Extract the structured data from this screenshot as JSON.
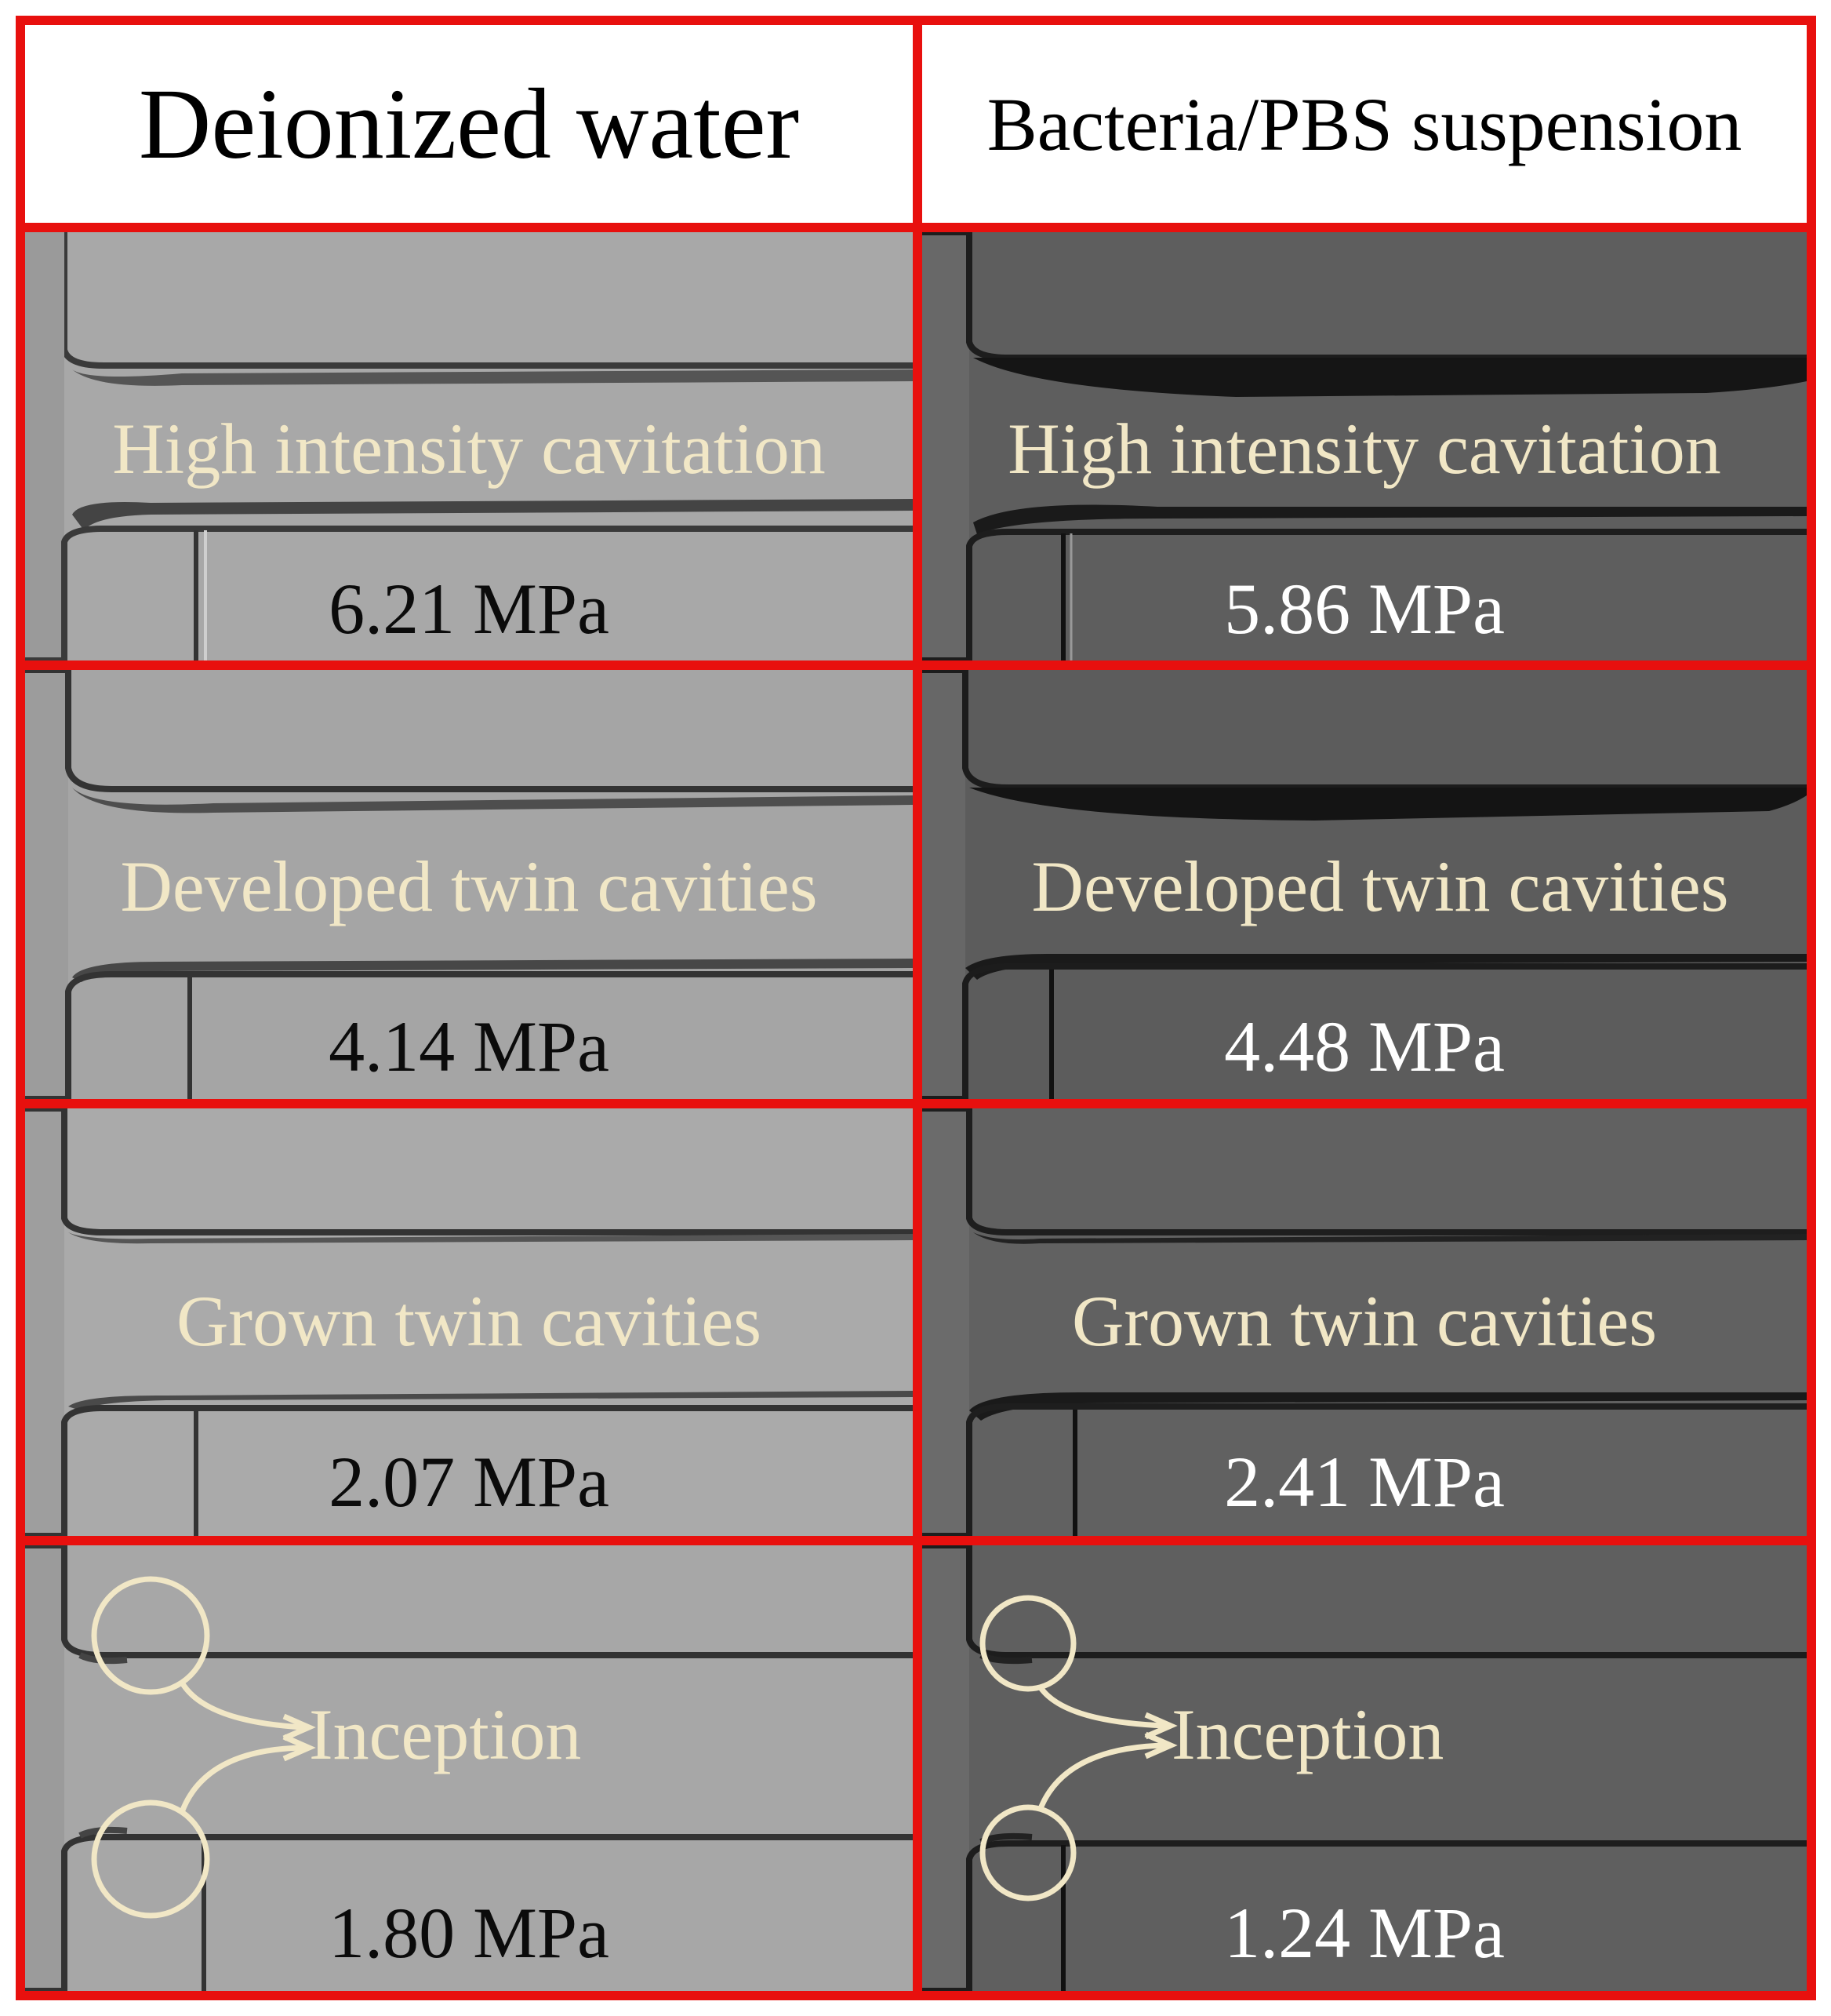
{
  "columns": [
    {
      "title": "Deionized water",
      "panels": [
        {
          "stage": "High intensity cavitation",
          "pressure": "6.21 MPa"
        },
        {
          "stage": "Developed twin cavities",
          "pressure": "4.14 MPa"
        },
        {
          "stage": "Grown twin cavities",
          "pressure": "2.07 MPa"
        },
        {
          "stage": "Inception",
          "pressure": "1.80 MPa"
        }
      ]
    },
    {
      "title": "Bacteria/PBS suspension",
      "panels": [
        {
          "stage": "High intensity cavitation",
          "pressure": "5.86 MPa"
        },
        {
          "stage": "Developed twin cavities",
          "pressure": "4.48 MPa"
        },
        {
          "stage": "Grown twin cavities",
          "pressure": "2.41 MPa"
        },
        {
          "stage": "Inception",
          "pressure": "1.24 MPa"
        }
      ]
    }
  ],
  "colors": {
    "grid_border": "#e8100e",
    "annotation": "#f1e7c6",
    "water_background": "#a9a9a9",
    "suspension_background": "#5f5f5f"
  }
}
